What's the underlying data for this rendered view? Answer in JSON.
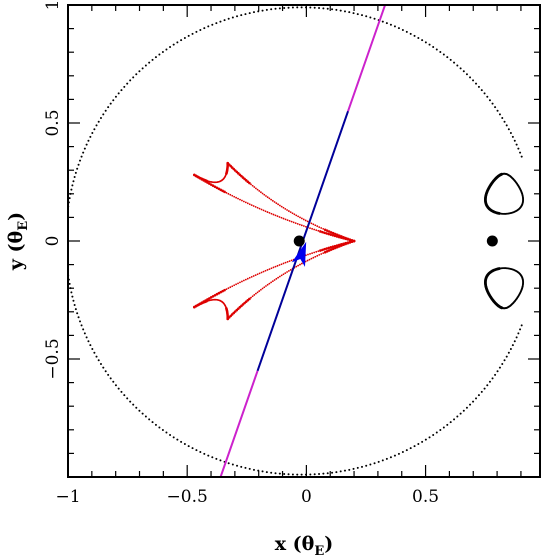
{
  "chart_data": {
    "type": "scatter",
    "title": "",
    "xlabel": "x (θE)",
    "ylabel": "y (θE)",
    "xlabel_parts": {
      "main": "x (θ",
      "sub": "E",
      "close": ")"
    },
    "ylabel_parts": {
      "main": "y (θ",
      "sub": "E",
      "close": ")"
    },
    "xlim": [
      -1.0,
      0.98
    ],
    "ylim": [
      -1.0,
      1.0
    ],
    "xticks": [
      -1,
      -0.5,
      0,
      0.5
    ],
    "xtick_labels": [
      "−1",
      "−0.5",
      "0",
      "0.5"
    ],
    "yticks": [
      -0.5,
      0,
      0.5,
      1
    ],
    "ytick_labels": [
      "−0.5",
      "0",
      "0.5",
      "1"
    ],
    "grid": false,
    "critical_curve": {
      "color": "#000000",
      "main_circle": {
        "center": [
          -0.02,
          0.0
        ],
        "radius": 0.99
      },
      "lobes": [
        {
          "center": [
            0.83,
            0.2
          ],
          "rx": 0.075,
          "ry": 0.085
        },
        {
          "center": [
            0.83,
            -0.2
          ],
          "rx": 0.075,
          "ry": 0.085
        }
      ]
    },
    "caustic": {
      "color": "#dd0000",
      "cusps_upper": [
        [
          -0.47,
          0.28
        ],
        [
          -0.33,
          0.33
        ],
        [
          0.2,
          0.0
        ]
      ],
      "cusps_lower": [
        [
          -0.47,
          -0.28
        ],
        [
          -0.33,
          -0.33
        ],
        [
          0.2,
          0.0
        ]
      ]
    },
    "lenses": [
      {
        "x": -0.03,
        "y": 0.0,
        "color": "#000000"
      },
      {
        "x": 0.78,
        "y": 0.0,
        "color": "#000000"
      }
    ],
    "source_trajectory": {
      "outer_color": "#cc22cc",
      "inner_color": "#000099",
      "start": [
        -0.36,
        -1.0
      ],
      "end": [
        0.33,
        1.0
      ],
      "inner_range": [
        -0.2,
        0.2
      ]
    },
    "source_arrow": {
      "x": -0.02,
      "y": -0.06,
      "angle_deg": 71,
      "color": "#0000ee"
    }
  }
}
